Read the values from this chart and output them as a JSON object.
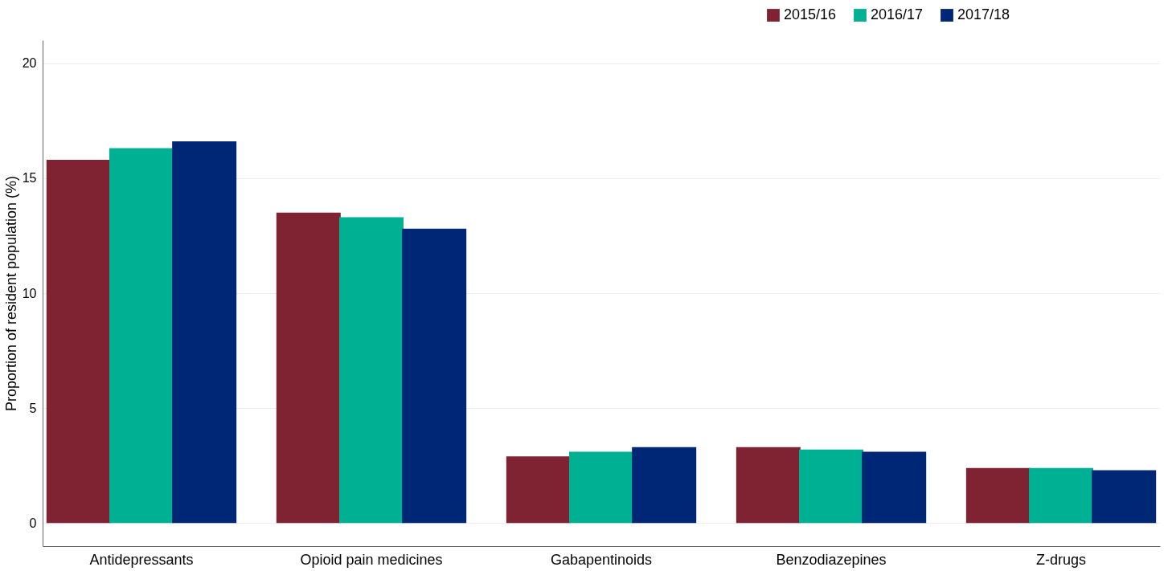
{
  "chart_data": {
    "type": "bar",
    "ylabel": "Proportion of resident population (%)",
    "categories": [
      "Antidepressants",
      "Opioid pain medicines",
      "Gabapentinoids",
      "Benzodiazepines",
      "Z-drugs"
    ],
    "series": [
      {
        "name": "2015/16",
        "color": "#7f2333",
        "values": [
          15.8,
          13.5,
          2.9,
          3.3,
          2.4
        ]
      },
      {
        "name": "2016/17",
        "color": "#00b092",
        "values": [
          16.3,
          13.3,
          3.1,
          3.2,
          2.4
        ]
      },
      {
        "name": "2017/18",
        "color": "#002776",
        "values": [
          16.6,
          12.8,
          3.3,
          3.1,
          2.3
        ]
      }
    ],
    "ylim": [
      -1,
      21
    ],
    "yticks": [
      0,
      5,
      10,
      15,
      20
    ],
    "grid": "y",
    "legend": "top right"
  }
}
